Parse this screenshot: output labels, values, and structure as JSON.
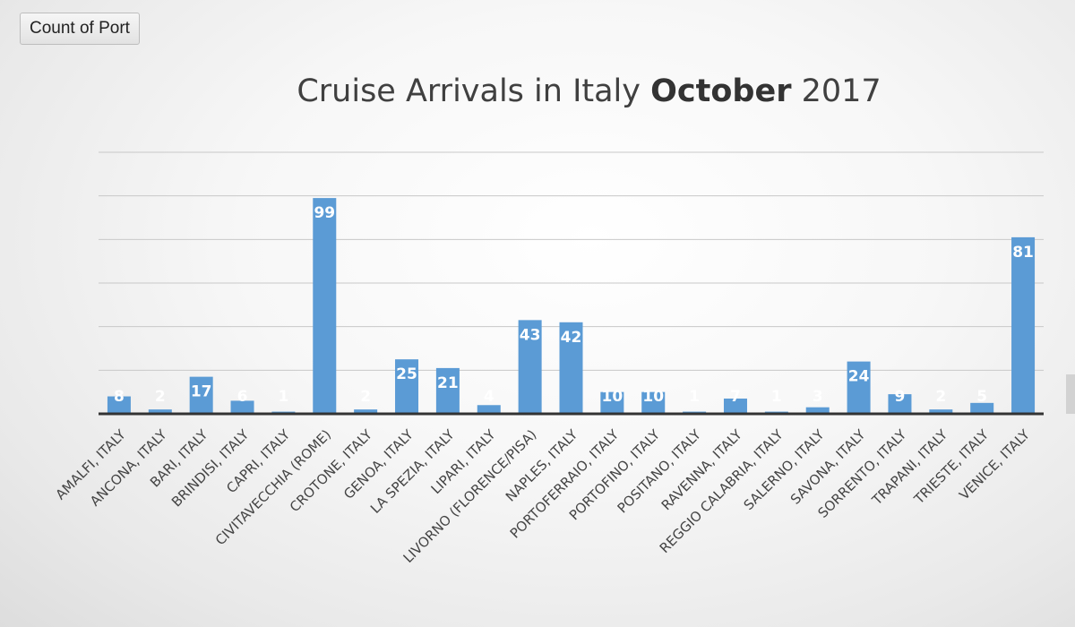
{
  "pivot_field_button": {
    "label": "Count of Port"
  },
  "chart_data": {
    "type": "bar",
    "title_parts": {
      "before": "Cruise Arrivals in Italy ",
      "bold": "October",
      "after": " 2017"
    },
    "categories": [
      "AMALFI, ITALY",
      "ANCONA, ITALY",
      "BARI, ITALY",
      "BRINDISI, ITALY",
      "CAPRI, ITALY",
      "CIVITAVECCHIA (ROME)",
      "CROTONE, ITALY",
      "GENOA, ITALY",
      "LA SPEZIA, ITALY",
      "LIPARI, ITALY",
      "LIVORNO (FLORENCE/PISA)",
      "NAPLES, ITALY",
      "PORTOFERRAIO, ITALY",
      "PORTOFINO, ITALY",
      "POSITANO, ITALY",
      "RAVENNA, ITALY",
      "REGGIO CALABRIA, ITALY",
      "SALERNO, ITALY",
      "SAVONA, ITALY",
      "SORRENTO, ITALY",
      "TRAPANI, ITALY",
      "TRIESTE, ITALY",
      "VENICE, ITALY"
    ],
    "values": [
      8,
      2,
      17,
      6,
      1,
      99,
      2,
      25,
      21,
      4,
      43,
      42,
      10,
      10,
      1,
      7,
      1,
      3,
      24,
      9,
      2,
      5,
      81
    ],
    "ylim": [
      0,
      120
    ],
    "gridline_step": 20,
    "grid": true,
    "legend": "none",
    "bar_color": "#5b9bd5",
    "data_label_color": "#ffffff",
    "axis_color": "#333333",
    "gridline_color": "#c8c8c8"
  }
}
